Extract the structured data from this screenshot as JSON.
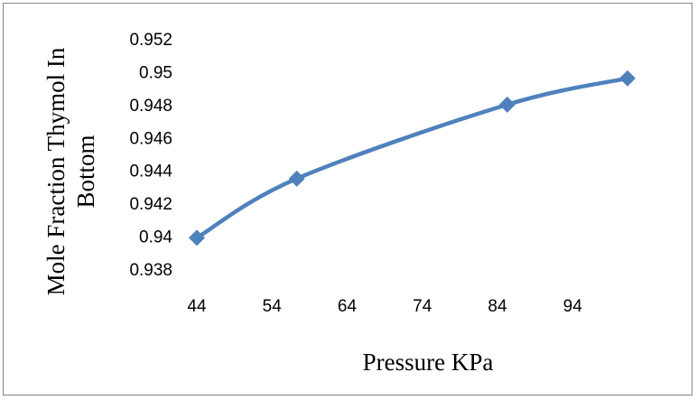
{
  "chart_data": {
    "type": "line",
    "xlabel": "Pressure KPa",
    "ylabel_lines": [
      "Mole Fraction Thymol In",
      "Bottom"
    ],
    "x_ticks": [
      44,
      54,
      64,
      74,
      84,
      94
    ],
    "y_ticks": [
      0.938,
      0.94,
      0.942,
      0.944,
      0.946,
      0.948,
      0.95,
      0.952
    ],
    "y_tick_labels": [
      "0.938",
      "0.94",
      "0.942",
      "0.944",
      "0.946",
      "0.948",
      "0.95",
      "0.952"
    ],
    "xlim": [
      44,
      101.3
    ],
    "ylim": [
      0.938,
      0.952
    ],
    "grid": false,
    "legend": "none",
    "marker": "diamond",
    "series": [
      {
        "x": [
          44,
          57.3,
          85.3,
          101.3
        ],
        "values": [
          0.9399,
          0.9435,
          0.948,
          0.9496
        ]
      }
    ],
    "color": "#4F81BD"
  }
}
